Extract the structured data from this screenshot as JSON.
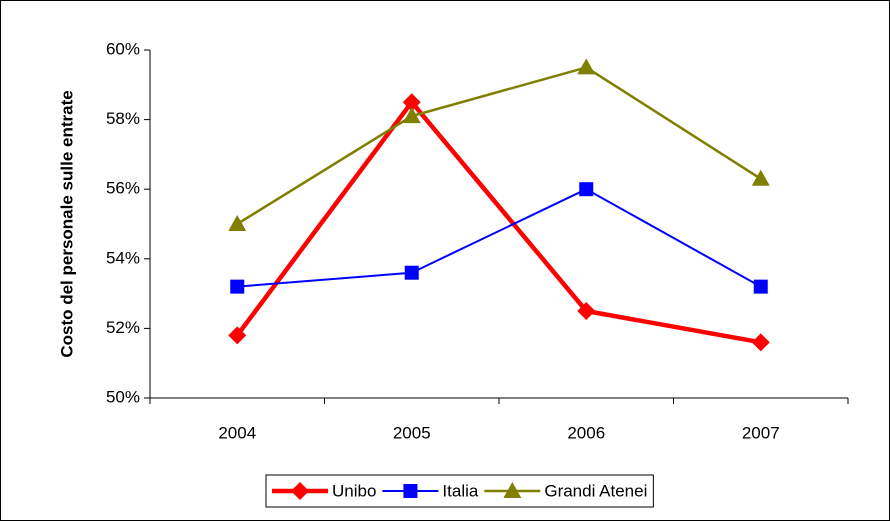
{
  "chart_data": {
    "type": "line",
    "y_label": "Costo del personale sulle entrate",
    "categories": [
      "2004",
      "2005",
      "2006",
      "2007"
    ],
    "series": [
      {
        "name": "Unibo",
        "color": "#ff0000",
        "marker": "diamond",
        "values": [
          51.8,
          58.5,
          52.5,
          51.6
        ]
      },
      {
        "name": "Italia",
        "color": "#0000ff",
        "marker": "square",
        "values": [
          53.2,
          53.6,
          56.0,
          53.2
        ]
      },
      {
        "name": "Grandi Atenei",
        "color": "#808000",
        "marker": "triangle",
        "values": [
          55.0,
          58.1,
          59.5,
          56.3
        ]
      }
    ],
    "ylim": [
      50,
      60
    ],
    "yticks": [
      {
        "value": 50,
        "label": "50%"
      },
      {
        "value": 52,
        "label": "52%"
      },
      {
        "value": 54,
        "label": "54%"
      },
      {
        "value": 56,
        "label": "56%"
      },
      {
        "value": 58,
        "label": "58%"
      },
      {
        "value": 60,
        "label": "60%"
      }
    ],
    "grid": false,
    "legend": "bottom"
  }
}
